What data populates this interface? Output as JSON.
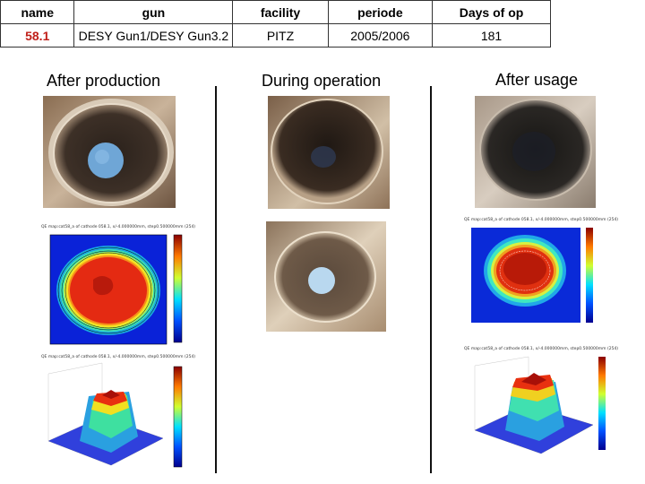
{
  "table": {
    "headers": [
      "name",
      "gun",
      "facility",
      "periode",
      "Days of op"
    ],
    "row": {
      "name": "58.1",
      "gun": "DESY Gun1/DESY Gun3.2",
      "facility": "PITZ",
      "periode": "2005/2006",
      "days": "181"
    }
  },
  "headings": {
    "after_production": "After production",
    "during_operation": "During operation",
    "after_usage": "After usage"
  },
  "plots": {
    "map_2d_left_title": "QE map:cat58_a of cathode 058.1, x/-4.000000mm, step0.500000mm (254)",
    "map_3d_left_title": "QE map:cat58_a of cathode 058.1, x/-4.000000mm, step0.500000mm (254)",
    "map_2d_right_title": "QE map:cat58_a of cathode 058.1, x/-4.000000mm, step0.500000mm (254)",
    "map_3d_right_title": "QE map:cat58_a of cathode 058.1, x/-4.000000mm, step0.500000mm (254)"
  },
  "colors": {
    "name_red": "#c0201a",
    "divider": "#111111"
  }
}
